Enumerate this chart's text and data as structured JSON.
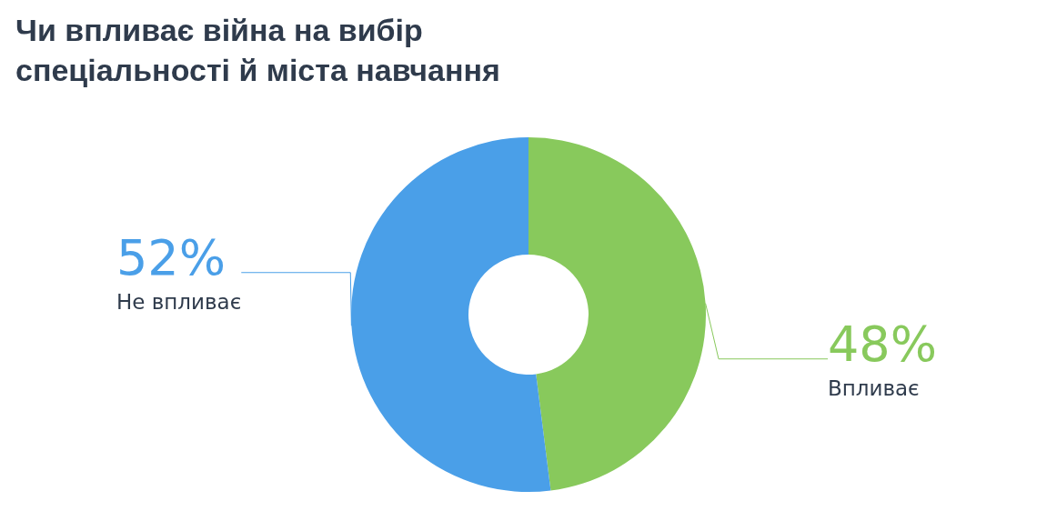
{
  "chart_data": {
    "type": "donut",
    "title": "Чи впливає війна на вибір спеціальності й міста навчання",
    "categories": [
      "Впливає",
      "Не впливає"
    ],
    "values": [
      48,
      52
    ],
    "colors": [
      "#88c95c",
      "#4a9fe8"
    ],
    "value_labels": [
      "48%",
      "52%"
    ],
    "legend": false
  }
}
